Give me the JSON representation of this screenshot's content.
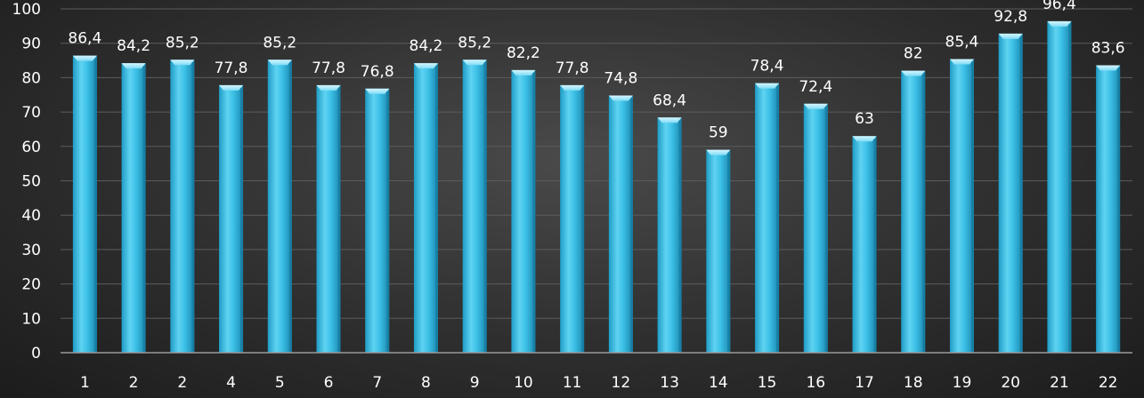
{
  "chart_data": {
    "type": "bar",
    "title": "",
    "xlabel": "",
    "ylabel": "",
    "categories": [
      "1",
      "2",
      "2",
      "4",
      "5",
      "6",
      "7",
      "8",
      "9",
      "10",
      "11",
      "12",
      "13",
      "14",
      "15",
      "16",
      "17",
      "18",
      "19",
      "20",
      "21",
      "22"
    ],
    "values": [
      86.4,
      84.2,
      85.2,
      77.8,
      85.2,
      77.8,
      76.8,
      84.2,
      85.2,
      82.2,
      77.8,
      74.8,
      68.4,
      59,
      78.4,
      72.4,
      63,
      82,
      85.4,
      92.8,
      96.4,
      83.6
    ],
    "data_labels": [
      "86,4",
      "84,2",
      "85,2",
      "77,8",
      "85,2",
      "77,8",
      "76,8",
      "84,2",
      "85,2",
      "82,2",
      "77,8",
      "74,8",
      "68,4",
      "59",
      "78,4",
      "72,4",
      "63",
      "82",
      "85,4",
      "92,8",
      "96,4",
      "83,6"
    ],
    "ylim": [
      0,
      100
    ],
    "yticks": [
      "0",
      "10",
      "20",
      "30",
      "40",
      "50",
      "60",
      "70",
      "80",
      "90",
      "100"
    ],
    "grid": true,
    "legend": "none",
    "colors": {
      "bar_light": "#8fe3f7",
      "bar_main": "#3cc0e6",
      "bar_dark": "#1e8fb8",
      "text": "#ffffff"
    }
  }
}
